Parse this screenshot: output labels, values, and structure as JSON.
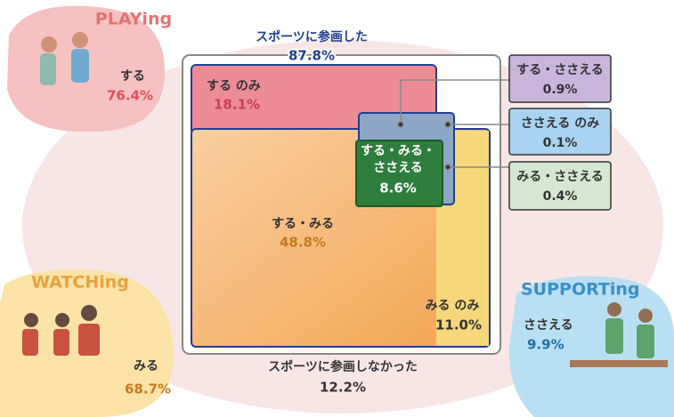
{
  "groups": {
    "playing": {
      "title": "PLAYing",
      "label": "する",
      "value": "76.4%"
    },
    "watching": {
      "title": "WATCHing",
      "label": "みる",
      "value": "68.7%"
    },
    "supporting": {
      "title": "SUPPORTing",
      "label": "ささえる",
      "value": "9.9%"
    }
  },
  "participated": {
    "label": "スポーツに参画した",
    "value": "87.8%"
  },
  "not_participated": {
    "label": "スポーツに参画しなかった",
    "value": "12.2%"
  },
  "segments": [
    {
      "label": "する のみ",
      "value": "18.1%"
    },
    {
      "label": "する・みる",
      "value": "48.8%"
    },
    {
      "label": "みる のみ",
      "value": "11.0%"
    },
    {
      "label_lines": [
        "する・みる・",
        "ささえる"
      ],
      "value": "8.6%"
    },
    {
      "label": "する・ささえる",
      "value": "0.9%"
    },
    {
      "label": "ささえる のみ",
      "value": "0.1%"
    },
    {
      "label": "みる・ささえる",
      "value": "0.4%"
    }
  ]
}
